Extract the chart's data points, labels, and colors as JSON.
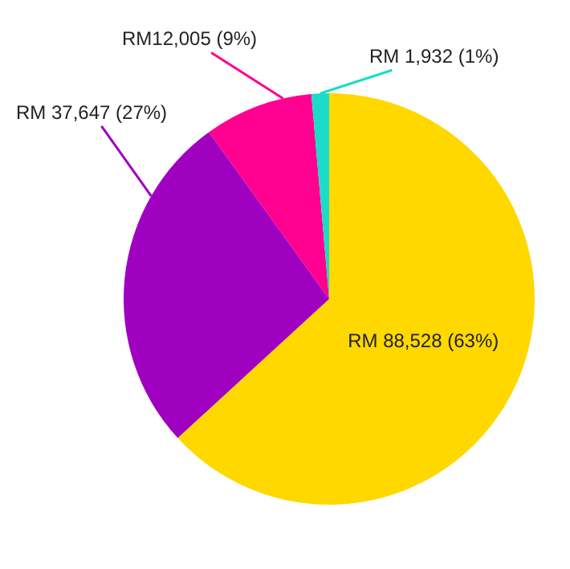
{
  "chart_data": {
    "type": "pie",
    "categories": [
      null,
      null,
      null,
      null
    ],
    "values": [
      88528,
      37647,
      12005,
      1932
    ],
    "colors": [
      "#ffd800",
      "#a000c0",
      "#ff0090",
      "#1adcc8"
    ],
    "value_labels": [
      "RM 88,528 (63%)",
      "RM 37,647 (27%)",
      "RM12,005 (9%)",
      "RM 1,932 (1%)"
    ],
    "legend": false
  }
}
